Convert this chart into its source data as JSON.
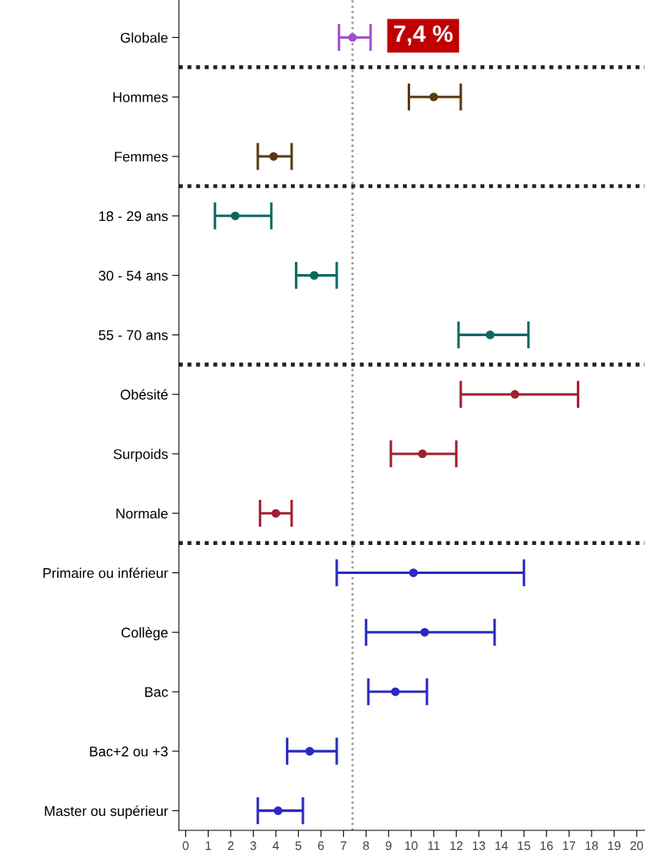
{
  "chart_data": {
    "type": "scatter",
    "orientation": "horizontal",
    "categories": [
      "Globale",
      "Hommes",
      "Femmes",
      "18 - 29 ans",
      "30 - 54 ans",
      "55 - 70 ans",
      "Obésité",
      "Surpoids",
      "Normale",
      "Primaire ou inférieur",
      "Collège",
      "Bac",
      "Bac+2 ou +3",
      "Master ou supérieur"
    ],
    "series": [
      {
        "color": "#a050d0",
        "values": [
          7.4,
          null,
          null,
          null,
          null,
          null,
          null,
          null,
          null,
          null,
          null,
          null,
          null,
          null
        ],
        "errors": [
          [
            6.8,
            8.2
          ],
          null,
          null,
          null,
          null,
          null,
          null,
          null,
          null,
          null,
          null,
          null,
          null,
          null
        ]
      },
      {
        "color": "#5a3a10",
        "values": [
          null,
          11.0,
          3.9,
          null,
          null,
          null,
          null,
          null,
          null,
          null,
          null,
          null,
          null,
          null
        ],
        "errors": [
          null,
          [
            9.9,
            12.2
          ],
          [
            3.2,
            4.7
          ],
          null,
          null,
          null,
          null,
          null,
          null,
          null,
          null,
          null,
          null,
          null
        ]
      },
      {
        "color": "#0a6a60",
        "values": [
          null,
          null,
          null,
          2.2,
          5.7,
          13.5,
          null,
          null,
          null,
          null,
          null,
          null,
          null,
          null
        ],
        "errors": [
          null,
          null,
          null,
          [
            1.3,
            3.8
          ],
          [
            4.9,
            6.7
          ],
          [
            12.1,
            15.2
          ],
          null,
          null,
          null,
          null,
          null,
          null,
          null,
          null
        ]
      },
      {
        "color": "#a02030",
        "values": [
          null,
          null,
          null,
          null,
          null,
          null,
          14.6,
          10.5,
          4.0,
          null,
          null,
          null,
          null,
          null
        ],
        "errors": [
          null,
          null,
          null,
          null,
          null,
          null,
          [
            12.2,
            17.4
          ],
          [
            9.1,
            12.0
          ],
          [
            3.3,
            4.7
          ],
          null,
          null,
          null,
          null,
          null
        ]
      },
      {
        "color": "#2a2ac0",
        "values": [
          null,
          null,
          null,
          null,
          null,
          null,
          null,
          null,
          null,
          10.1,
          10.6,
          9.3,
          5.5,
          4.1
        ],
        "errors": [
          null,
          null,
          null,
          null,
          null,
          null,
          null,
          null,
          null,
          [
            6.7,
            15.0
          ],
          [
            8.0,
            13.7
          ],
          [
            8.1,
            10.7
          ],
          [
            4.5,
            6.7
          ],
          [
            3.2,
            5.2
          ]
        ]
      }
    ],
    "xlim": [
      -0.3,
      20.35
    ],
    "xticks": [
      0,
      1,
      2,
      3,
      4,
      5,
      6,
      7,
      8,
      9,
      10,
      11,
      12,
      13,
      14,
      15,
      16,
      17,
      18,
      19,
      20
    ],
    "ref_lines": [
      {
        "axis": "x",
        "value": 7.4,
        "label": "7,4 %",
        "color": "#909090",
        "line_style": "dotted"
      }
    ],
    "marker": "circle",
    "grid": false,
    "legend": false
  }
}
